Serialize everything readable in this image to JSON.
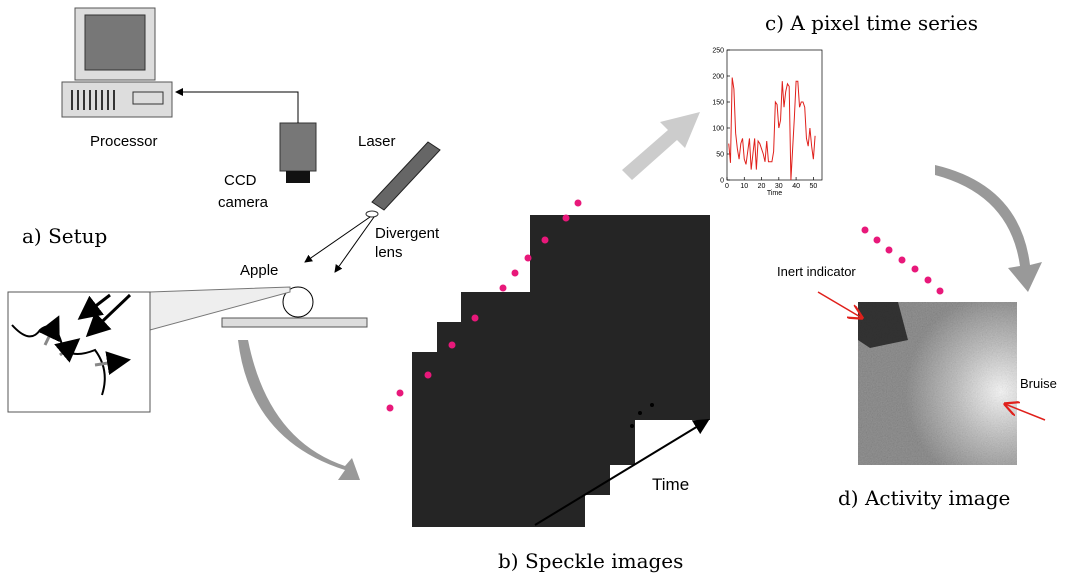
{
  "labels": {
    "processor": "Processor",
    "ccd": "CCD",
    "camera": "camera",
    "laser": "Laser",
    "divergent": "Divergent",
    "lens": "lens",
    "apple": "Apple",
    "setup": "a) Setup",
    "speckle": "b) Speckle images",
    "time": "Time",
    "activity": "d) Activity image",
    "inert": "Inert indicator",
    "bruise": "Bruise"
  },
  "chart_data": {
    "type": "line",
    "title": "c) A pixel time series",
    "x_label": "Time",
    "x": [
      1,
      2,
      3,
      4,
      5,
      6,
      7,
      8,
      9,
      10,
      11,
      12,
      13,
      14,
      15,
      16,
      17,
      18,
      19,
      20,
      21,
      22,
      23,
      24,
      25,
      26,
      27,
      28,
      29,
      30,
      31,
      32,
      33,
      34,
      35,
      36,
      37,
      38,
      39,
      40,
      41,
      42,
      43,
      44,
      45,
      46,
      47,
      48,
      49,
      50,
      51
    ],
    "series": [
      {
        "color": "#e0201b",
        "values": [
          70,
          33,
          197,
          175,
          90,
          60,
          40,
          70,
          80,
          40,
          30,
          55,
          80,
          20,
          50,
          80,
          20,
          75,
          70,
          60,
          50,
          35,
          75,
          35,
          35,
          35,
          55,
          150,
          145,
          100,
          115,
          190,
          140,
          170,
          185,
          180,
          0,
          60,
          120,
          190,
          190,
          140,
          150,
          150,
          140,
          80,
          65,
          100,
          65,
          40,
          85
        ]
      }
    ],
    "xlim": [
      0,
      55
    ],
    "xticks": [
      0,
      10,
      20,
      30,
      40,
      50
    ],
    "ylim": [
      0,
      250
    ],
    "yticks": [
      0,
      50,
      100,
      150,
      200,
      250
    ]
  }
}
